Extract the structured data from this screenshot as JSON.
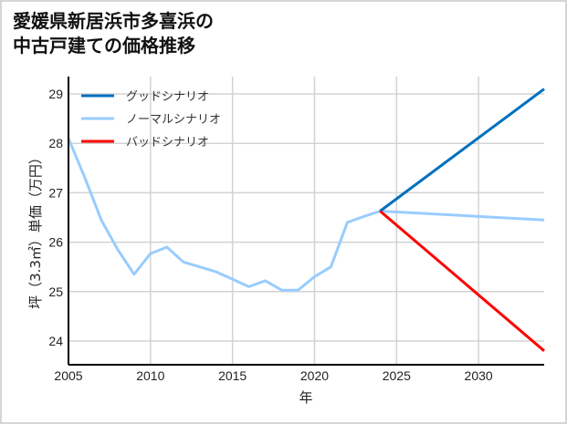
{
  "title_line1": "愛媛県新居浜市多喜浜の",
  "title_line2": "中古戸建ての価格推移",
  "chart_data": {
    "type": "line",
    "title": "愛媛県新居浜市多喜浜の中古戸建ての価格推移",
    "xlabel": "年",
    "ylabel": "坪（3.3㎡）単価（万円）",
    "xlim": [
      2005,
      2034
    ],
    "ylim": [
      23.55,
      29.35
    ],
    "x_ticks": [
      2005,
      2010,
      2015,
      2020,
      2025,
      2030
    ],
    "y_ticks": [
      24,
      25,
      26,
      27,
      28,
      29
    ],
    "grid": true,
    "legend_position": "upper left",
    "series": [
      {
        "name": "グッドシナリオ",
        "color": "#0070c0",
        "x": [
          2024,
          2034
        ],
        "values": [
          26.63,
          29.1
        ]
      },
      {
        "name": "ノーマルシナリオ",
        "color": "#99ccff",
        "x": [
          2005,
          2006,
          2007,
          2008,
          2009,
          2010,
          2011,
          2012,
          2013,
          2014,
          2015,
          2016,
          2017,
          2018,
          2019,
          2020,
          2021,
          2022,
          2023,
          2024,
          2034
        ],
        "values": [
          28.1,
          27.3,
          26.45,
          25.85,
          25.35,
          25.77,
          25.9,
          25.6,
          25.5,
          25.4,
          25.25,
          25.1,
          25.22,
          25.03,
          25.03,
          25.3,
          25.5,
          26.4,
          26.52,
          26.63,
          26.45
        ]
      },
      {
        "name": "バッドシナリオ",
        "color": "#ff0000",
        "x": [
          2024,
          2034
        ],
        "values": [
          26.63,
          23.8
        ]
      }
    ]
  }
}
